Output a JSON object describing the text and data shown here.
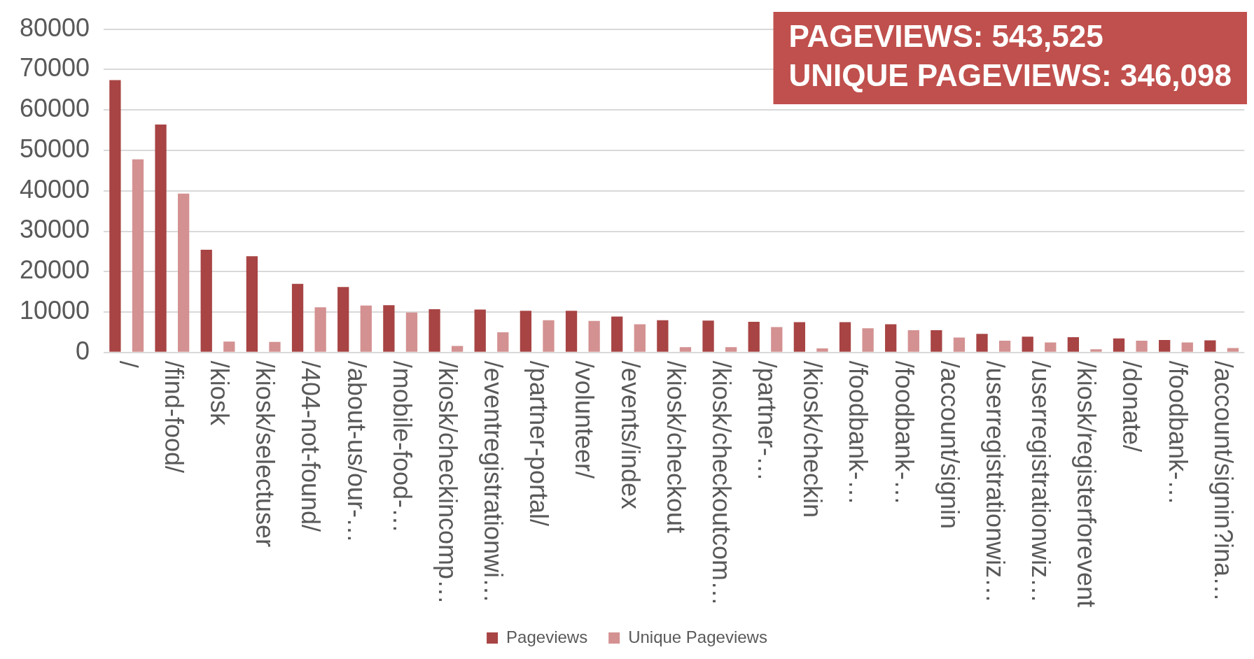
{
  "chart_data": {
    "type": "bar",
    "categories": [
      "/",
      "/find-food/",
      "/kiosk",
      "/kiosk/selectuser",
      "/404-not-found/",
      "/about-us/our-…",
      "/mobile-food-…",
      "/kiosk/checkincomp…",
      "/eventregistrationwi…",
      "/partner-portal/",
      "/volunteer/",
      "/events/index",
      "/kiosk/checkout",
      "/kiosk/checkoutcom…",
      "/partner-…",
      "/kiosk/checkin",
      "/foodbank-…",
      "/foodbank-…",
      "/account/signin",
      "/userregistrationwiz…",
      "/userregistrationwiz…",
      "/kiosk/registerforevent",
      "/donate/",
      "/foodbank-…",
      "/account/signin?ina…"
    ],
    "series": [
      {
        "name": "Pageviews",
        "color": "#a84444",
        "values": [
          67400,
          56400,
          25400,
          23800,
          17000,
          16200,
          11700,
          10700,
          10600,
          10300,
          10300,
          8900,
          8000,
          7900,
          7600,
          7500,
          7500,
          7000,
          5500,
          4600,
          3900,
          3800,
          3500,
          3100,
          3000
        ]
      },
      {
        "name": "Unique Pageviews",
        "color": "#d49191",
        "values": [
          47800,
          39300,
          2700,
          2600,
          11200,
          11600,
          9900,
          1600,
          5000,
          8000,
          7800,
          7000,
          1300,
          1300,
          6300,
          1000,
          6000,
          5500,
          3700,
          2900,
          2500,
          800,
          2900,
          2500,
          1100
        ]
      }
    ],
    "ylim": [
      0,
      80000
    ],
    "yticks": [
      0,
      10000,
      20000,
      30000,
      40000,
      50000,
      60000,
      70000,
      80000
    ],
    "grid": "y",
    "legend": "bottom",
    "annotations": [
      "PAGEVIEWS: 543,525",
      "UNIQUE PAGEVIEWS: 346,098"
    ]
  }
}
